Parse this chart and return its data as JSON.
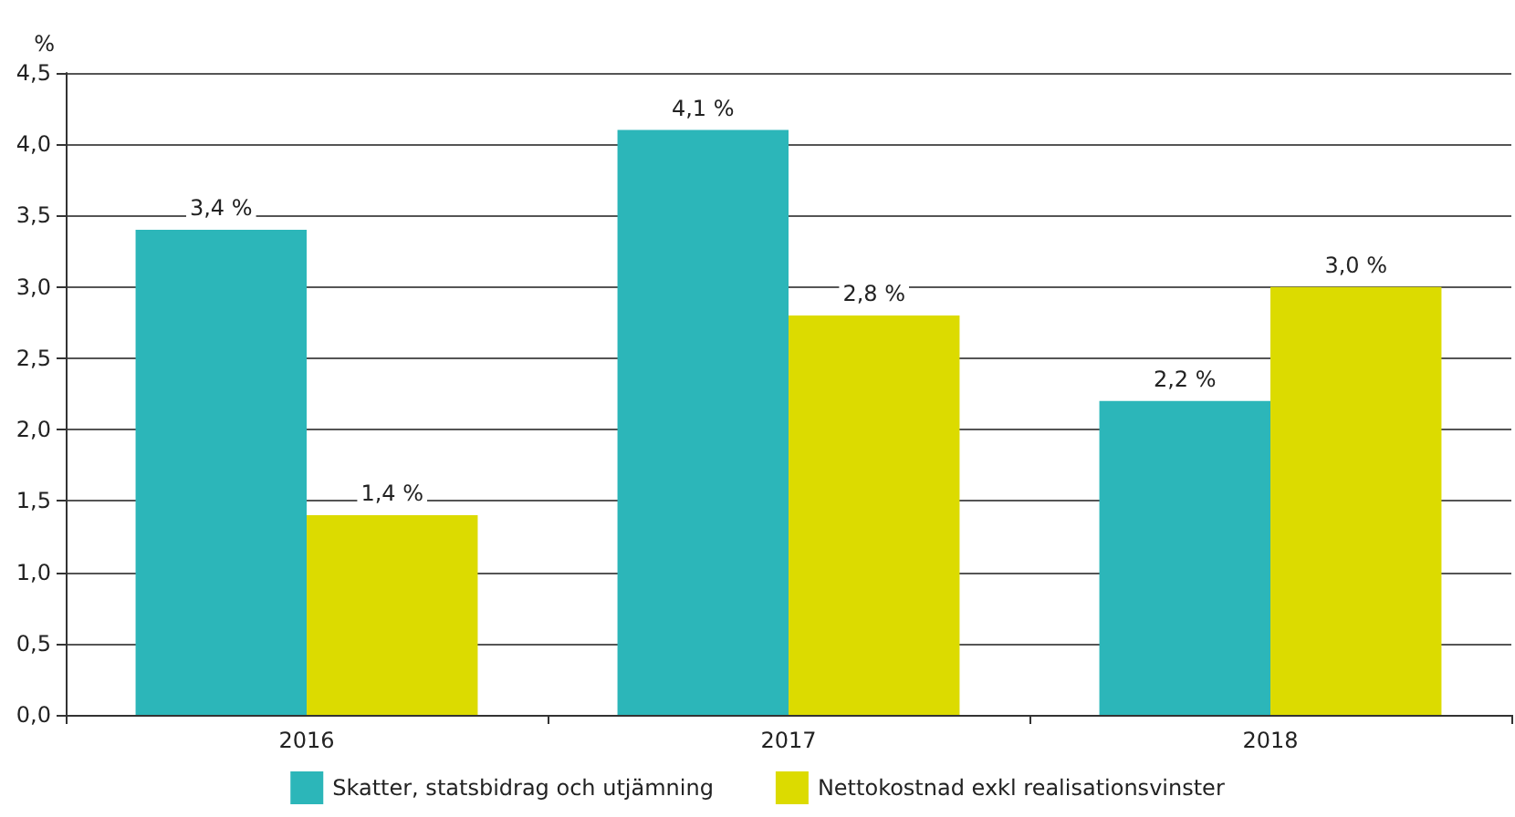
{
  "chart_data": {
    "type": "bar",
    "ylabel": "%",
    "categories": [
      "2016",
      "2017",
      "2018"
    ],
    "series": [
      {
        "name": "Skatter, statsbidrag och utjämning",
        "color": "#2cb6b9",
        "values": [
          3.4,
          4.1,
          2.2
        ],
        "value_labels": [
          "3,4 %",
          "4,1 %",
          "2,2 %"
        ]
      },
      {
        "name": "Nettokostnad exkl realisationsvinster",
        "color": "#dcdb00",
        "values": [
          1.4,
          2.8,
          3.0
        ],
        "value_labels": [
          "1,4 %",
          "2,8 %",
          "3,0 %"
        ]
      }
    ],
    "ylim": [
      0,
      4.5
    ],
    "yticks": [
      {
        "value": 0,
        "label": "0,0"
      },
      {
        "value": 0.5,
        "label": "0,5"
      },
      {
        "value": 1,
        "label": "1,0"
      },
      {
        "value": 1.5,
        "label": "1,5"
      },
      {
        "value": 2,
        "label": "2,0"
      },
      {
        "value": 2.5,
        "label": "2,5"
      },
      {
        "value": 3,
        "label": "3,0"
      },
      {
        "value": 3.5,
        "label": "3,5"
      },
      {
        "value": 4,
        "label": "4,0"
      },
      {
        "value": 4.5,
        "label": "4,5"
      }
    ],
    "grid": "y",
    "legend": "bottom"
  }
}
